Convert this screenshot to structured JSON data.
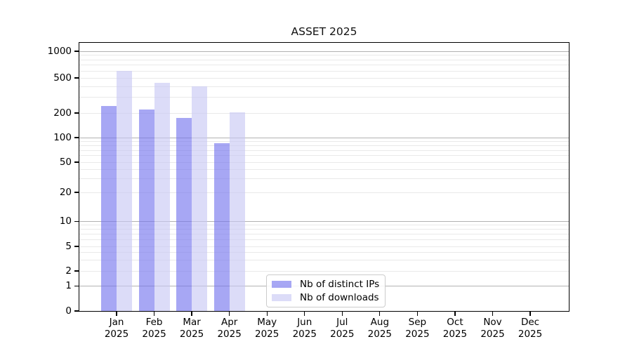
{
  "chart_data": {
    "type": "bar",
    "title": "ASSET 2025",
    "categories": [
      "Jan 2025",
      "Feb 2025",
      "Mar 2025",
      "Apr 2025",
      "May 2025",
      "Jun 2025",
      "Jul 2025",
      "Aug 2025",
      "Sep 2025",
      "Oct 2025",
      "Nov 2025",
      "Dec 2025"
    ],
    "series": [
      {
        "name": "Nb of distinct IPs",
        "color": "rgba(113,113,238,0.62)",
        "values": [
          240,
          220,
          175,
          85,
          null,
          null,
          null,
          null,
          null,
          null,
          null,
          null
        ]
      },
      {
        "name": "Nb of downloads",
        "color": "rgba(198,198,243,0.62)",
        "values": [
          600,
          440,
          400,
          205,
          null,
          null,
          null,
          null,
          null,
          null,
          null,
          null
        ]
      }
    ],
    "xlabel": "",
    "ylabel": "",
    "yscale": "symlog",
    "yticks": [
      0,
      1,
      2,
      5,
      10,
      20,
      50,
      100,
      200,
      500,
      1000
    ],
    "ylim": [
      0,
      1250
    ],
    "grid": "horizontal, major at powers of 10, log minors",
    "legend_position": "bottom-center-left",
    "colors": {
      "major_grid": "#b2b2b2",
      "minor_grid": "#e9e9e9",
      "spine": "#000000",
      "legend_border": "#cccccc"
    }
  }
}
